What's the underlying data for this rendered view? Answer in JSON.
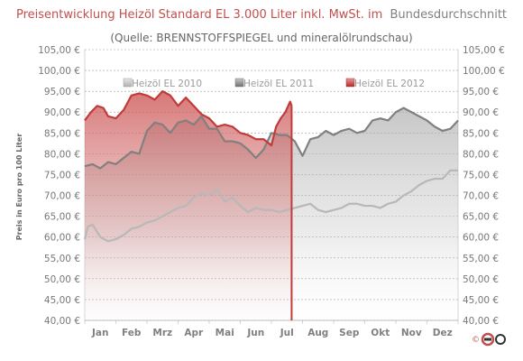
{
  "chart_data": {
    "type": "area",
    "title": "Preisentwicklung Heizöl Standard EL 3.000 Liter inkl. MwSt. im Bundesdurchschnitt",
    "title_red_part": "Preisentwicklung Heizöl Standard EL 3.000 Liter inkl. MwSt. im",
    "title_gray_part": "Bundesdurchschnitt",
    "subtitle": "(Quelle: BRENNSTOFFSPIEGEL und mineralölrundschau)",
    "ylabel": "Preis in Euro pro 100 Liter",
    "xlabel": "",
    "ylim": [
      40,
      105
    ],
    "yticks": [
      "40,00 €",
      "45,00 €",
      "50,00 €",
      "55,00 €",
      "60,00 €",
      "65,00 €",
      "70,00 €",
      "75,00 €",
      "80,00 €",
      "85,00 €",
      "90,00 €",
      "95,00 €",
      "100,00 €",
      "105,00 €"
    ],
    "ytick_values": [
      40,
      45,
      50,
      55,
      60,
      65,
      70,
      75,
      80,
      85,
      90,
      95,
      100,
      105
    ],
    "months": [
      "Jan",
      "Feb",
      "Mrz",
      "Apr",
      "Mai",
      "Jun",
      "Jul",
      "Aug",
      "Sep",
      "Okt",
      "Nov",
      "Dez"
    ],
    "grid": true,
    "legend_position": "top",
    "series": [
      {
        "name": "Heizöl EL 2010",
        "color": "#b8b8b8",
        "x": [
          0,
          0.1,
          0.25,
          0.5,
          0.75,
          1.0,
          1.25,
          1.5,
          1.75,
          2.0,
          2.25,
          2.5,
          2.75,
          3.0,
          3.25,
          3.5,
          3.75,
          4.0,
          4.25,
          4.5,
          4.75,
          5.0,
          5.25,
          5.5,
          5.75,
          6.0,
          6.25,
          6.5,
          6.75,
          7.0,
          7.25,
          7.5,
          7.75,
          8.0,
          8.25,
          8.5,
          8.75,
          9.0,
          9.25,
          9.5,
          9.75,
          10.0,
          10.25,
          10.5,
          10.75,
          11.0,
          11.25,
          11.5,
          11.75,
          12.0
        ],
        "values": [
          59.5,
          62.5,
          63.0,
          60.0,
          59.0,
          59.5,
          60.5,
          62.0,
          62.5,
          63.5,
          64.0,
          65.0,
          66.0,
          67.0,
          67.5,
          69.5,
          70.5,
          70.0,
          71.5,
          68.5,
          69.5,
          67.5,
          66.0,
          67.0,
          66.5,
          66.5,
          66.0,
          66.5,
          67.0,
          67.5,
          68.0,
          66.5,
          66.0,
          66.5,
          67.0,
          68.0,
          68.0,
          67.5,
          67.5,
          67.0,
          68.0,
          68.5,
          70.0,
          71.0,
          72.5,
          73.5,
          74.0,
          74.0,
          76.0,
          76.0
        ]
      },
      {
        "name": "Heizöl EL 2011",
        "color": "#808080",
        "x": [
          0,
          0.25,
          0.5,
          0.75,
          1.0,
          1.25,
          1.5,
          1.75,
          2.0,
          2.25,
          2.5,
          2.75,
          3.0,
          3.25,
          3.5,
          3.75,
          4.0,
          4.25,
          4.5,
          4.75,
          5.0,
          5.25,
          5.5,
          5.75,
          6.0,
          6.25,
          6.5,
          6.75,
          7.0,
          7.25,
          7.5,
          7.75,
          8.0,
          8.25,
          8.5,
          8.75,
          9.0,
          9.25,
          9.5,
          9.75,
          10.0,
          10.25,
          10.5,
          10.75,
          11.0,
          11.25,
          11.5,
          11.75,
          12.0
        ],
        "values": [
          77.0,
          77.5,
          76.5,
          78.0,
          77.5,
          79.0,
          80.5,
          80.0,
          85.5,
          87.5,
          87.0,
          85.0,
          87.5,
          88.0,
          87.0,
          89.0,
          86.0,
          86.0,
          83.0,
          83.0,
          82.5,
          81.0,
          79.0,
          81.0,
          85.0,
          84.5,
          84.5,
          83.0,
          79.5,
          83.5,
          84.0,
          85.5,
          84.5,
          85.5,
          86.0,
          85.0,
          85.5,
          88.0,
          88.5,
          88.0,
          90.0,
          91.0,
          90.0,
          89.0,
          88.0,
          86.5,
          85.5,
          86.0,
          88.0
        ]
      },
      {
        "name": "Heizöl EL 2012",
        "color": "#c23b3b",
        "x": [
          0,
          0.2,
          0.4,
          0.6,
          0.75,
          1.0,
          1.25,
          1.5,
          1.75,
          2.0,
          2.25,
          2.5,
          2.75,
          3.0,
          3.25,
          3.5,
          3.75,
          4.0,
          4.25,
          4.5,
          4.75,
          5.0,
          5.25,
          5.5,
          5.75,
          6.0,
          6.15,
          6.3,
          6.45,
          6.6,
          6.65
        ],
        "values": [
          88.0,
          90.0,
          91.5,
          91.0,
          89.0,
          88.5,
          90.5,
          94.0,
          94.5,
          94.0,
          93.0,
          95.0,
          94.0,
          91.5,
          93.5,
          91.5,
          89.5,
          88.5,
          86.5,
          87.0,
          86.5,
          85.0,
          84.5,
          83.5,
          83.5,
          82.0,
          86.5,
          88.5,
          90.0,
          92.5,
          91.5
        ]
      }
    ]
  }
}
